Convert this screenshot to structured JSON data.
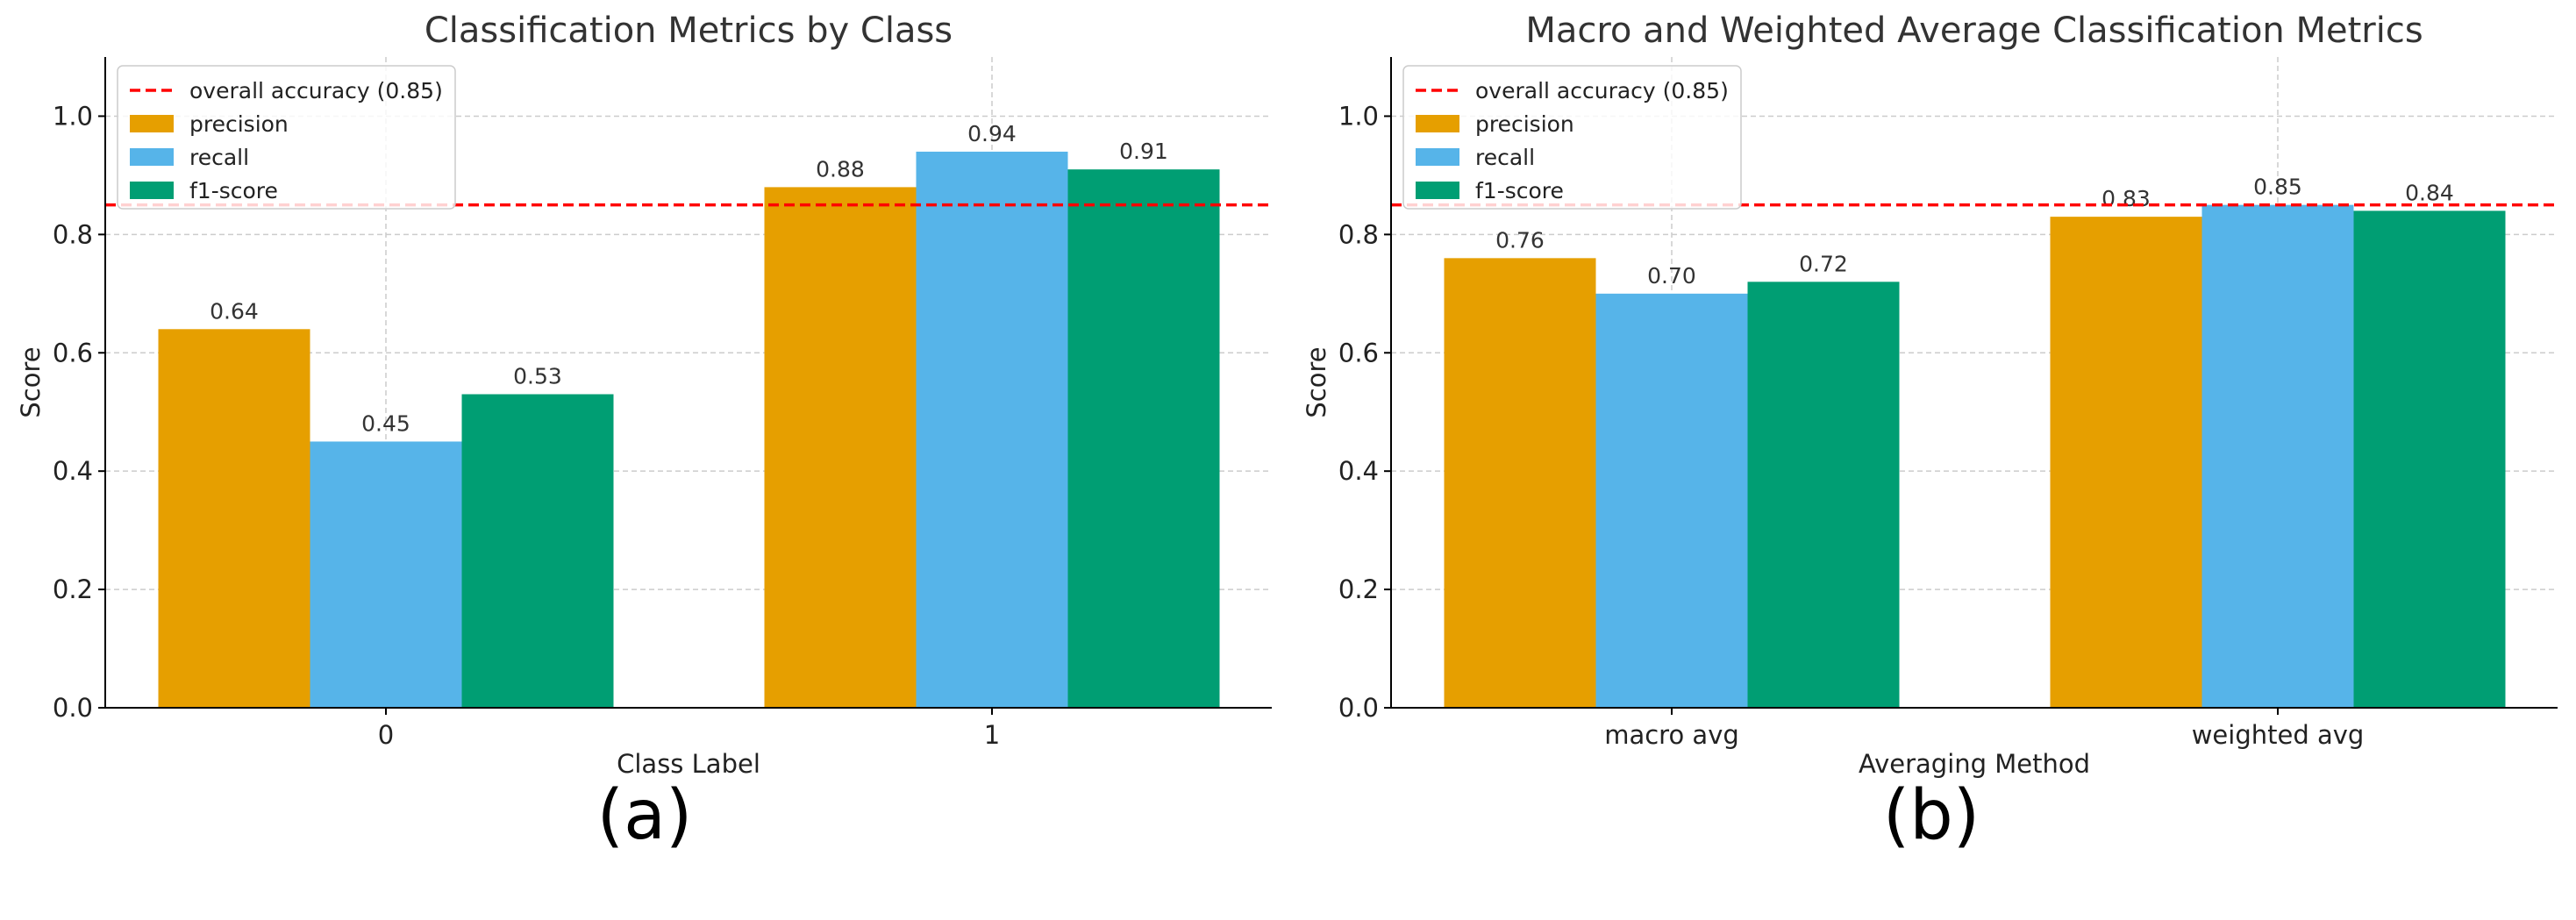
{
  "chart_data": [
    {
      "type": "bar",
      "title": "Classification Metrics by Class",
      "xlabel": "Class Label",
      "ylabel": "Score",
      "categories": [
        "0",
        "1"
      ],
      "series": [
        {
          "name": "precision",
          "color": "#E69F00",
          "values": [
            0.64,
            0.88
          ],
          "labels": [
            "0.64",
            "0.88"
          ]
        },
        {
          "name": "recall",
          "color": "#56B4E9",
          "values": [
            0.45,
            0.94
          ],
          "labels": [
            "0.45",
            "0.94"
          ]
        },
        {
          "name": "f1-score",
          "color": "#009E73",
          "values": [
            0.53,
            0.91
          ],
          "labels": [
            "0.53",
            "0.91"
          ]
        }
      ],
      "reference_line": {
        "label": "overall accuracy (0.85)",
        "value": 0.85,
        "color": "#ff0000"
      },
      "ylim": [
        0,
        1.1
      ],
      "yticks": [
        0.0,
        0.2,
        0.4,
        0.6,
        0.8,
        1.0
      ],
      "ytick_labels": [
        "0.0",
        "0.2",
        "0.4",
        "0.6",
        "0.8",
        "1.0"
      ],
      "grid": true,
      "legend_position": "top-left",
      "panel_label": "(a)"
    },
    {
      "type": "bar",
      "title": "Macro and Weighted Average Classification Metrics",
      "xlabel": "Averaging Method",
      "ylabel": "Score",
      "categories": [
        "macro avg",
        "weighted avg"
      ],
      "series": [
        {
          "name": "precision",
          "color": "#E69F00",
          "values": [
            0.76,
            0.83
          ],
          "labels": [
            "0.76",
            "0.83"
          ]
        },
        {
          "name": "recall",
          "color": "#56B4E9",
          "values": [
            0.7,
            0.85
          ],
          "labels": [
            "0.70",
            "0.85"
          ]
        },
        {
          "name": "f1-score",
          "color": "#009E73",
          "values": [
            0.72,
            0.84
          ],
          "labels": [
            "0.72",
            "0.84"
          ]
        }
      ],
      "reference_line": {
        "label": "overall accuracy (0.85)",
        "value": 0.85,
        "color": "#ff0000"
      },
      "ylim": [
        0,
        1.1
      ],
      "yticks": [
        0.0,
        0.2,
        0.4,
        0.6,
        0.8,
        1.0
      ],
      "ytick_labels": [
        "0.0",
        "0.2",
        "0.4",
        "0.6",
        "0.8",
        "1.0"
      ],
      "grid": true,
      "legend_position": "top-left",
      "panel_label": "(b)"
    }
  ]
}
